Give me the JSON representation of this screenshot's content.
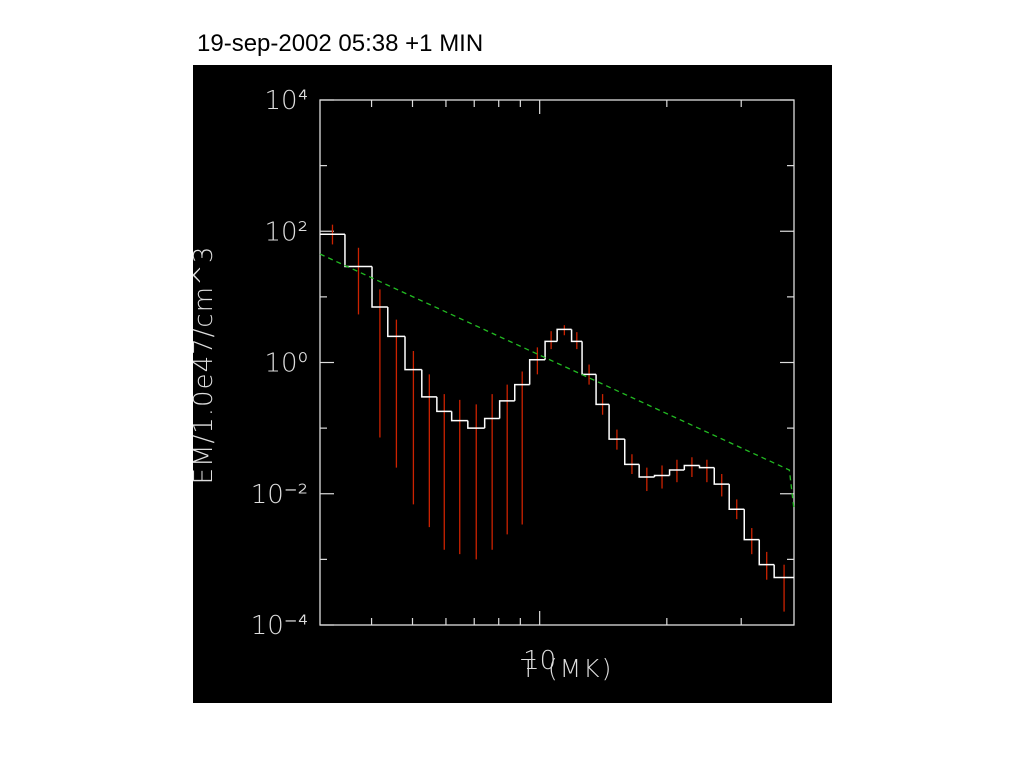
{
  "chart_data": {
    "type": "histogram",
    "title": "19-sep-2002 05:38 +1 MIN",
    "xlabel": "T (MK)",
    "ylabel": "EM/1.0e47/cm^3",
    "xscale": "log",
    "yscale": "log",
    "xlim": [
      3.02,
      40
    ],
    "ylim": [
      0.0001,
      10000
    ],
    "xticks": [
      10
    ],
    "xminorticks": [
      4,
      5,
      6,
      7,
      8,
      9,
      20,
      30
    ],
    "yticks": [
      {
        "value": 0.0001,
        "label": "10⁻⁴"
      },
      {
        "value": 0.01,
        "label": "10⁻²"
      },
      {
        "value": 1,
        "label": "10⁰"
      },
      {
        "value": 100,
        "label": "10²"
      },
      {
        "value": 10000,
        "label": "10⁴"
      }
    ],
    "yminorticks": [
      0.001,
      0.1,
      10,
      1000
    ],
    "color": "#ffffff",
    "bins": [
      3.02,
      3.46,
      4.01,
      4.37,
      4.8,
      5.26,
      5.71,
      6.19,
      6.76,
      7.41,
      8.04,
      8.73,
      9.47,
      10.3,
      11.0,
      11.9,
      12.6,
      13.6,
      14.6,
      15.9,
      17.2,
      18.7,
      20.3,
      22.0,
      23.9,
      25.9,
      28.1,
      30.5,
      33.1,
      35.9,
      40
    ],
    "values": [
      90,
      29,
      7,
      2.5,
      0.78,
      0.3,
      0.18,
      0.13,
      0.1,
      0.14,
      0.26,
      0.46,
      1.1,
      2.1,
      3.2,
      2.1,
      0.66,
      0.23,
      0.068,
      0.028,
      0.018,
      0.019,
      0.023,
      0.027,
      0.025,
      0.014,
      0.0058,
      0.002,
      0.00083,
      0.00053
    ],
    "err_color": "#cc2200",
    "err_low": [
      63,
      5.4,
      0.072,
      0.025,
      0.0069,
      0.0031,
      0.0014,
      0.0012,
      0.001,
      0.0014,
      0.0024,
      0.0034,
      0.66,
      1.6,
      2.6,
      1.6,
      0.46,
      0.16,
      0.047,
      0.02,
      0.011,
      0.012,
      0.015,
      0.018,
      0.015,
      0.0091,
      0.0041,
      0.0012,
      0.00049,
      0.00016
    ],
    "err_high": [
      126,
      56,
      13,
      4.5,
      1.5,
      0.66,
      0.33,
      0.27,
      0.23,
      0.33,
      0.46,
      0.73,
      1.7,
      3.0,
      3.7,
      2.9,
      0.93,
      0.33,
      0.095,
      0.04,
      0.025,
      0.027,
      0.033,
      0.036,
      0.033,
      0.02,
      0.0082,
      0.003,
      0.0013,
      0.00083
    ],
    "fit": {
      "x": [
        3.02,
        39,
        40
      ],
      "values": [
        45,
        0.023,
        0.0057
      ],
      "color": "#22bb22",
      "dashed": true
    }
  }
}
